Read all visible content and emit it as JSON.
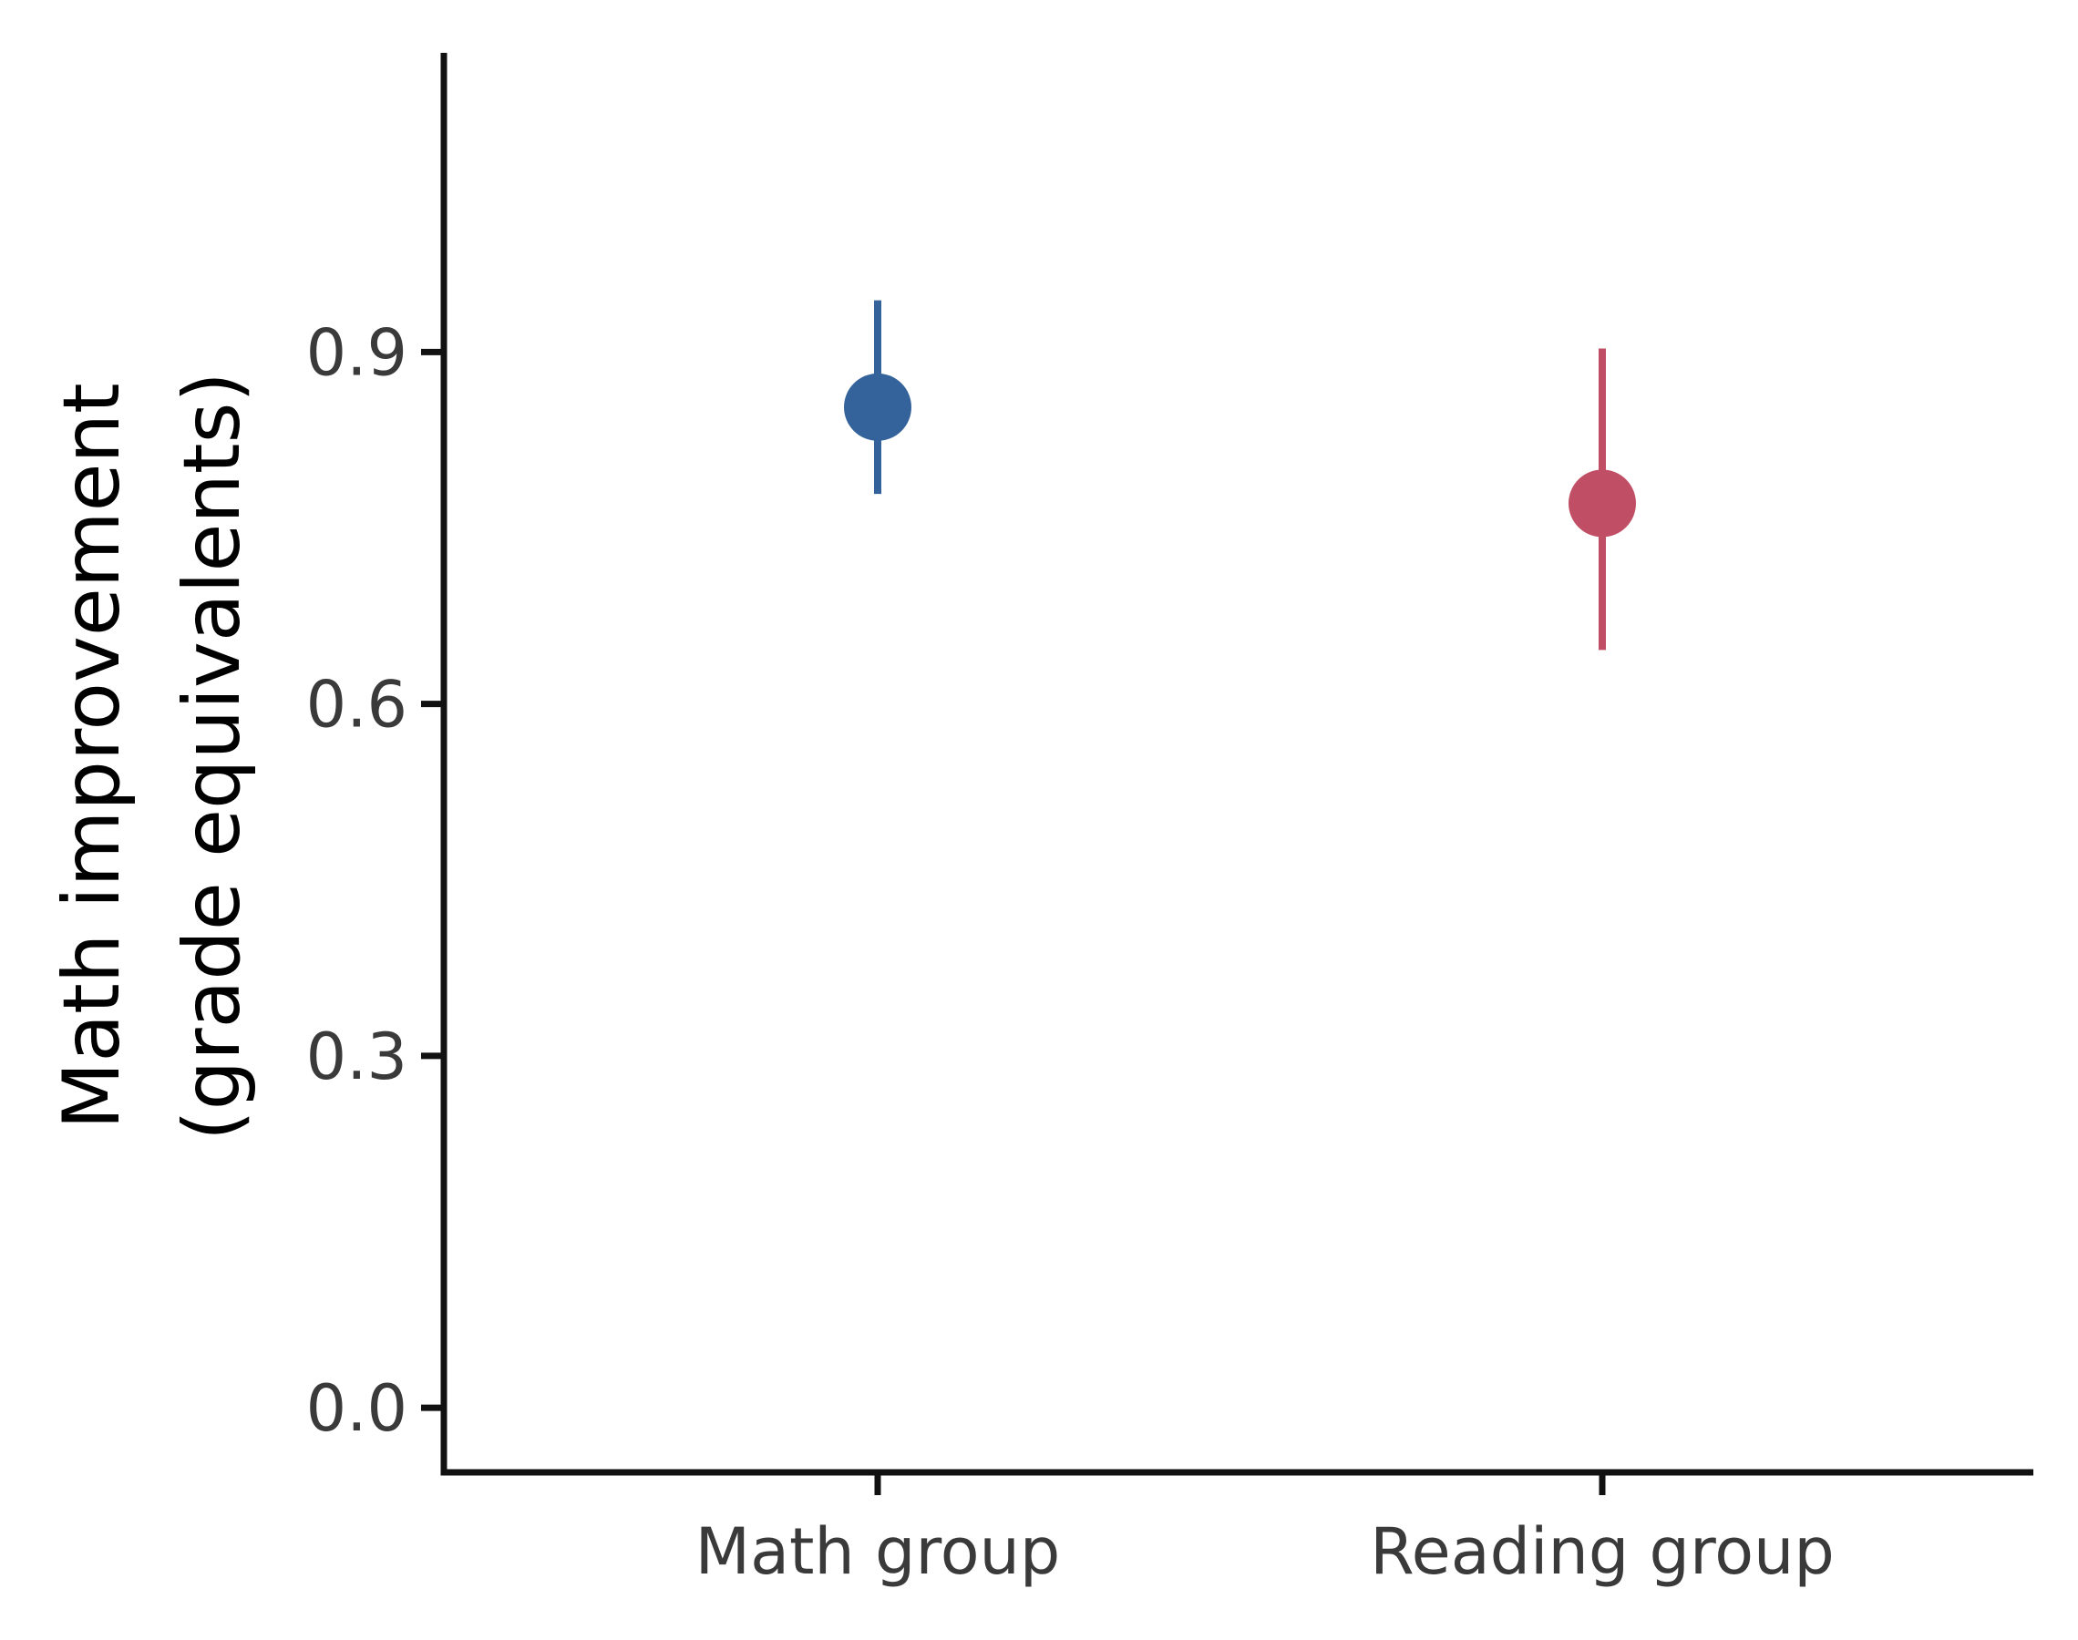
{
  "chart_data": {
    "type": "pointrange",
    "categories": [
      "Math group",
      "Reading group"
    ],
    "points": [
      {
        "category": "Math group",
        "value": 0.853,
        "lower": 0.779,
        "upper": 0.944,
        "color": "#34629a"
      },
      {
        "category": "Reading group",
        "value": 0.771,
        "lower": 0.646,
        "upper": 0.903,
        "color": "#c04f66"
      }
    ],
    "ylabel_lines": [
      "Math improvement",
      "(grade equivalents)"
    ],
    "xlabel": "",
    "yticks": [
      0.0,
      0.3,
      0.6,
      0.9
    ],
    "ytick_labels": [
      "0.0",
      "0.3",
      "0.6",
      "0.9"
    ],
    "ylim": [
      -0.055,
      1.155
    ],
    "grid": false,
    "legend": "none"
  }
}
